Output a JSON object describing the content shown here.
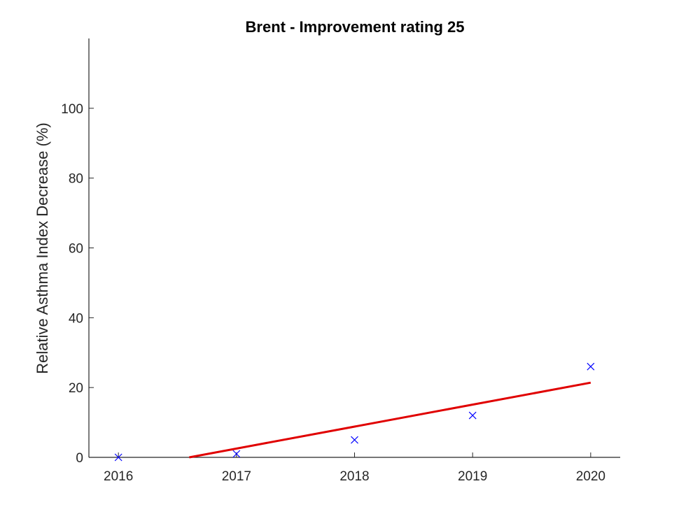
{
  "chart_data": {
    "type": "scatter",
    "title": "Brent - Improvement rating 25",
    "xlabel": "",
    "ylabel": "Relative Asthma Index Decrease (%)",
    "xlim": [
      2015.75,
      2020.25
    ],
    "ylim": [
      0,
      120
    ],
    "xticks": [
      2016,
      2017,
      2018,
      2019,
      2020
    ],
    "yticks": [
      0,
      20,
      40,
      60,
      80,
      100
    ],
    "grid": false,
    "series": [
      {
        "marker": "x",
        "color": "#0000ff",
        "points": [
          {
            "x": 2016,
            "y": 0
          },
          {
            "x": 2017,
            "y": 1
          },
          {
            "x": 2018,
            "y": 5
          },
          {
            "x": 2019,
            "y": 12
          },
          {
            "x": 2020,
            "y": 26
          }
        ]
      },
      {
        "kind": "trend-line",
        "color": "#e00000",
        "points": [
          {
            "x": 2016.6,
            "y": 0
          },
          {
            "x": 2020,
            "y": 21.4
          }
        ]
      }
    ]
  }
}
